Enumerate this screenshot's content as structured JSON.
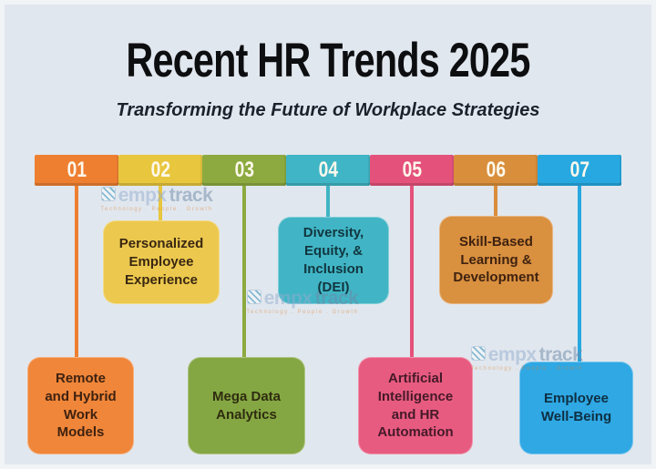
{
  "title": "Recent HR Trends 2025",
  "subtitle": "Transforming the Future of Workplace Strategies",
  "brand": {
    "icon": "stripes-square-icon",
    "prefix": "empx",
    "suffix": "track",
    "tagline": "Technology . People . Growth"
  },
  "colors": {
    "background": "#e1e7ee",
    "title_text": "#0d0e10",
    "subtitle_text": "#1b222c",
    "number_text": "#fdf8ec"
  },
  "trends": [
    {
      "number": "01",
      "label": "Remote\nand Hybrid\nWork\nModels",
      "segment_color": "#ee7f31",
      "card_color": "#f0863a",
      "text_color": "#3f2210",
      "position": "bottom"
    },
    {
      "number": "02",
      "label": "Personalized\nEmployee\nExperience",
      "segment_color": "#e8c63e",
      "card_color": "#ecc94e",
      "text_color": "#3a2712",
      "position": "top"
    },
    {
      "number": "03",
      "label": "Mega Data\nAnalytics",
      "segment_color": "#8caa3f",
      "card_color": "#85a743",
      "text_color": "#2f2c10",
      "position": "bottom"
    },
    {
      "number": "04",
      "label": "Diversity,\nEquity, &\nInclusion\n(DEI)",
      "segment_color": "#3fb5c5",
      "card_color": "#41b5c5",
      "text_color": "#113640",
      "position": "top"
    },
    {
      "number": "05",
      "label": "Artificial\nIntelligence\nand HR\nAutomation",
      "segment_color": "#e4527c",
      "card_color": "#e85b80",
      "text_color": "#451a29",
      "position": "bottom"
    },
    {
      "number": "06",
      "label": "Skill-Based\nLearning &\nDevelopment",
      "segment_color": "#d98e3b",
      "card_color": "#d9903f",
      "text_color": "#3f2210",
      "position": "top"
    },
    {
      "number": "07",
      "label": "Employee\nWell-Being",
      "segment_color": "#27a8e0",
      "card_color": "#2fa8e4",
      "text_color": "#0e2f42",
      "position": "bottom"
    }
  ]
}
